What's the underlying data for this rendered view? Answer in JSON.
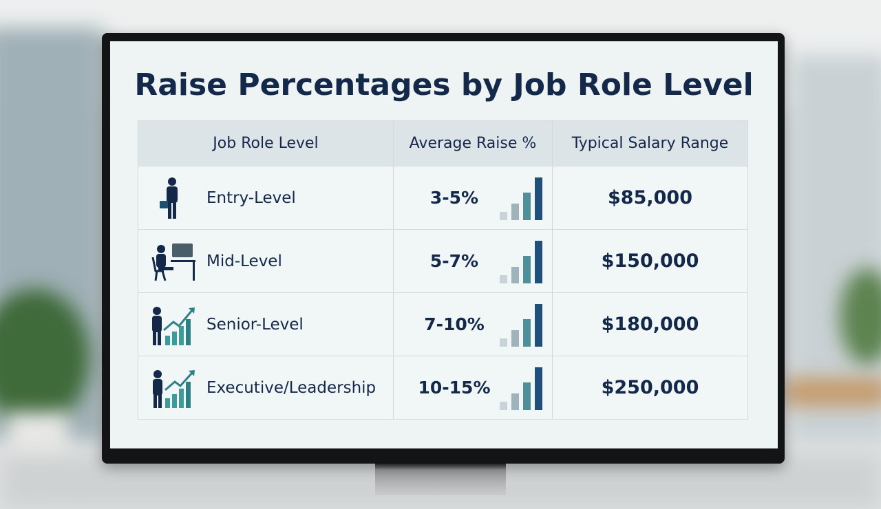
{
  "header": {
    "title": "Raise Percentages by Job Role Level"
  },
  "table": {
    "columns": [
      "Job Role Level",
      "Average Raise %",
      "Typical Salary Range"
    ],
    "rows": [
      [
        "Entry-Level",
        "3-5%",
        "$85,000"
      ],
      [
        "Mid-Level",
        "5-7%",
        "$150,000"
      ],
      [
        "Senior-Level",
        "7-10%",
        "$180,000"
      ],
      [
        "Executive/Leadership",
        "10-15%",
        "$250,000"
      ]
    ]
  }
}
